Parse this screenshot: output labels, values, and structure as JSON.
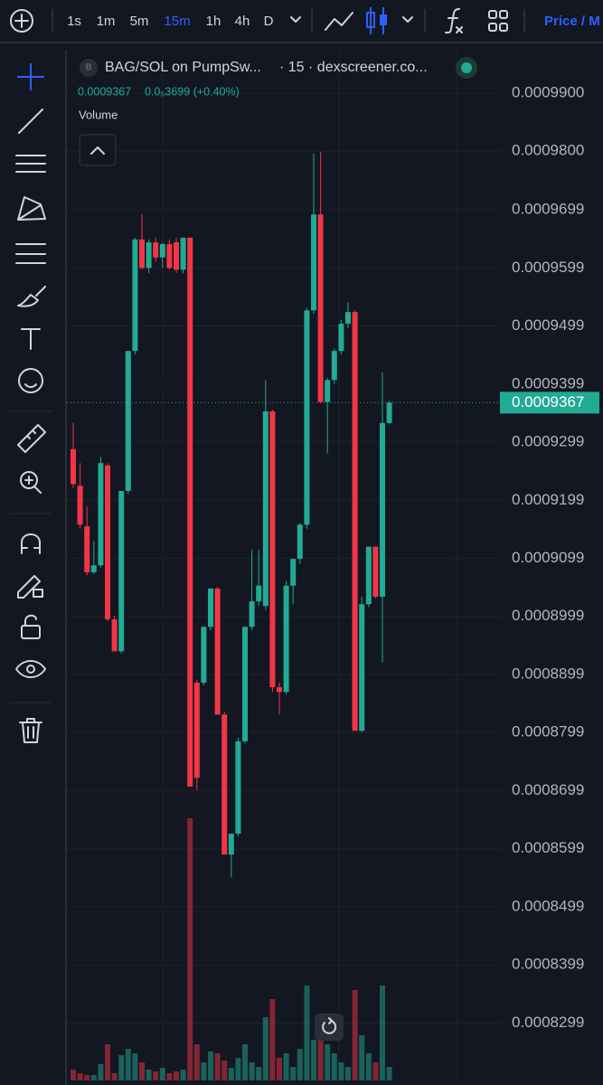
{
  "toolbar": {
    "intervals": [
      "1s",
      "1m",
      "5m",
      "15m",
      "1h",
      "4h",
      "D"
    ],
    "active_interval": 3,
    "price_toggle": "Price / M"
  },
  "chart_data": {
    "type": "candlestick",
    "symbol_icon": "B",
    "title": "BAG/SOL on PumpSw...",
    "subtitle": "· 15 · dexscreener.co...",
    "change_text": "0.0₅3699 (+0.40%)",
    "volume_label": "Volume",
    "up_color": "#22ab94",
    "down_color": "#f23645",
    "ylim": [
      0.00082,
      0.000997
    ],
    "yticks": [
      {
        "value": 0.00099,
        "label": "0.0009900"
      },
      {
        "value": 0.00098,
        "label": "0.0009800"
      },
      0.0009699,
      0.0009599,
      0.0009499,
      0.0009399,
      0.0009299,
      0.0009199,
      0.0009099,
      0.0008999,
      0.0008899,
      0.0008799,
      0.0008699,
      0.0008599,
      0.0008499,
      0.0008399,
      0.0008299
    ],
    "grid": true,
    "open": [
      0.0009287,
      0.0009224,
      0.0009154,
      0.0009075,
      0.0009087,
      0.0009259,
      0.0008994,
      0.0008939,
      0.0009215,
      0.0009456,
      0.0009648,
      0.0009599,
      0.0009643,
      0.0009617,
      0.000964,
      0.0009643,
      0.0009596,
      0.0009651,
      0.0008885,
      0.0008885,
      0.0008981,
      0.0009047,
      0.000883,
      0.0008589,
      0.0008625,
      0.0008784,
      0.0008981,
      0.0009025,
      0.0009017,
      0.0009352,
      0.0008877,
      0.0008869,
      0.0009052,
      0.0009098,
      0.0009157,
      0.0009526,
      0.0009691,
      0.0009368,
      0.0009406,
      0.0009456,
      0.0009503,
      0.0009523,
      0.0008802,
      0.000902,
      0.0009119,
      0.0009033,
      0.0009332
    ],
    "high": [
      0.0009332,
      0.0009263,
      0.0009189,
      0.0009129,
      0.0009274,
      0.0009263,
      0.0009,
      0.0009215,
      0.0009456,
      0.0009651,
      0.0009691,
      0.0009648,
      0.0009651,
      0.0009643,
      0.0009648,
      0.0009651,
      0.0009651,
      0.0009652,
      0.000889,
      0.0008981,
      0.0009047,
      0.000905,
      0.0008835,
      0.0008625,
      0.000879,
      0.0008981,
      0.0009114,
      0.0009114,
      0.0009406,
      0.0009355,
      0.0008885,
      0.000906,
      0.0009098,
      0.000916,
      0.000953,
      0.0009796,
      0.0009799,
      0.000941,
      0.000946,
      0.000951,
      0.000954,
      0.0009526,
      0.0009033,
      0.0009119,
      0.000912,
      0.0009419,
      0.000937
    ],
    "low": [
      0.000922,
      0.000915,
      0.000907,
      0.0009072,
      0.0009083,
      0.000899,
      0.0008939,
      0.0008935,
      0.000921,
      0.000945,
      0.0009596,
      0.000959,
      0.000961,
      0.0009599,
      0.0009596,
      0.000959,
      0.000959,
      0.0008706,
      0.00087,
      0.000888,
      0.0008975,
      0.000883,
      0.0008589,
      0.000855,
      0.000862,
      0.000878,
      0.0008975,
      0.0009017,
      0.000901,
      0.0008869,
      0.000883,
      0.0008865,
      0.000902,
      0.000909,
      0.000915,
      0.000952,
      0.0009366,
      0.000928,
      0.00094,
      0.000945,
      0.0009495,
      0.0008802,
      0.00088,
      0.0009015,
      0.000903,
      0.000892,
      0.000933
    ],
    "close": [
      0.0009227,
      0.0009157,
      0.0009075,
      0.0009087,
      0.0009263,
      0.0008994,
      0.0008939,
      0.0009215,
      0.0009456,
      0.0009648,
      0.0009599,
      0.0009643,
      0.0009617,
      0.000964,
      0.0009599,
      0.0009596,
      0.0009651,
      0.0008706,
      0.0008721,
      0.0008981,
      0.0009047,
      0.000883,
      0.0008589,
      0.0008625,
      0.0008784,
      0.0008981,
      0.0009025,
      0.0009052,
      0.0009352,
      0.0008877,
      0.0008869,
      0.0009052,
      0.0009098,
      0.0009157,
      0.0009526,
      0.0009691,
      0.0009368,
      0.0009406,
      0.0009456,
      0.0009503,
      0.0009523,
      0.0008802,
      0.000902,
      0.0009119,
      0.0009033,
      0.0009332,
      0.0009367
    ],
    "volume": [
      12,
      8,
      6,
      6,
      18,
      40,
      8,
      28,
      35,
      30,
      20,
      12,
      10,
      14,
      8,
      10,
      12,
      290,
      40,
      20,
      32,
      30,
      22,
      14,
      25,
      40,
      20,
      15,
      70,
      90,
      25,
      30,
      15,
      35,
      105,
      45,
      60,
      40,
      30,
      20,
      15,
      100,
      50,
      30,
      20,
      105,
      15
    ]
  }
}
